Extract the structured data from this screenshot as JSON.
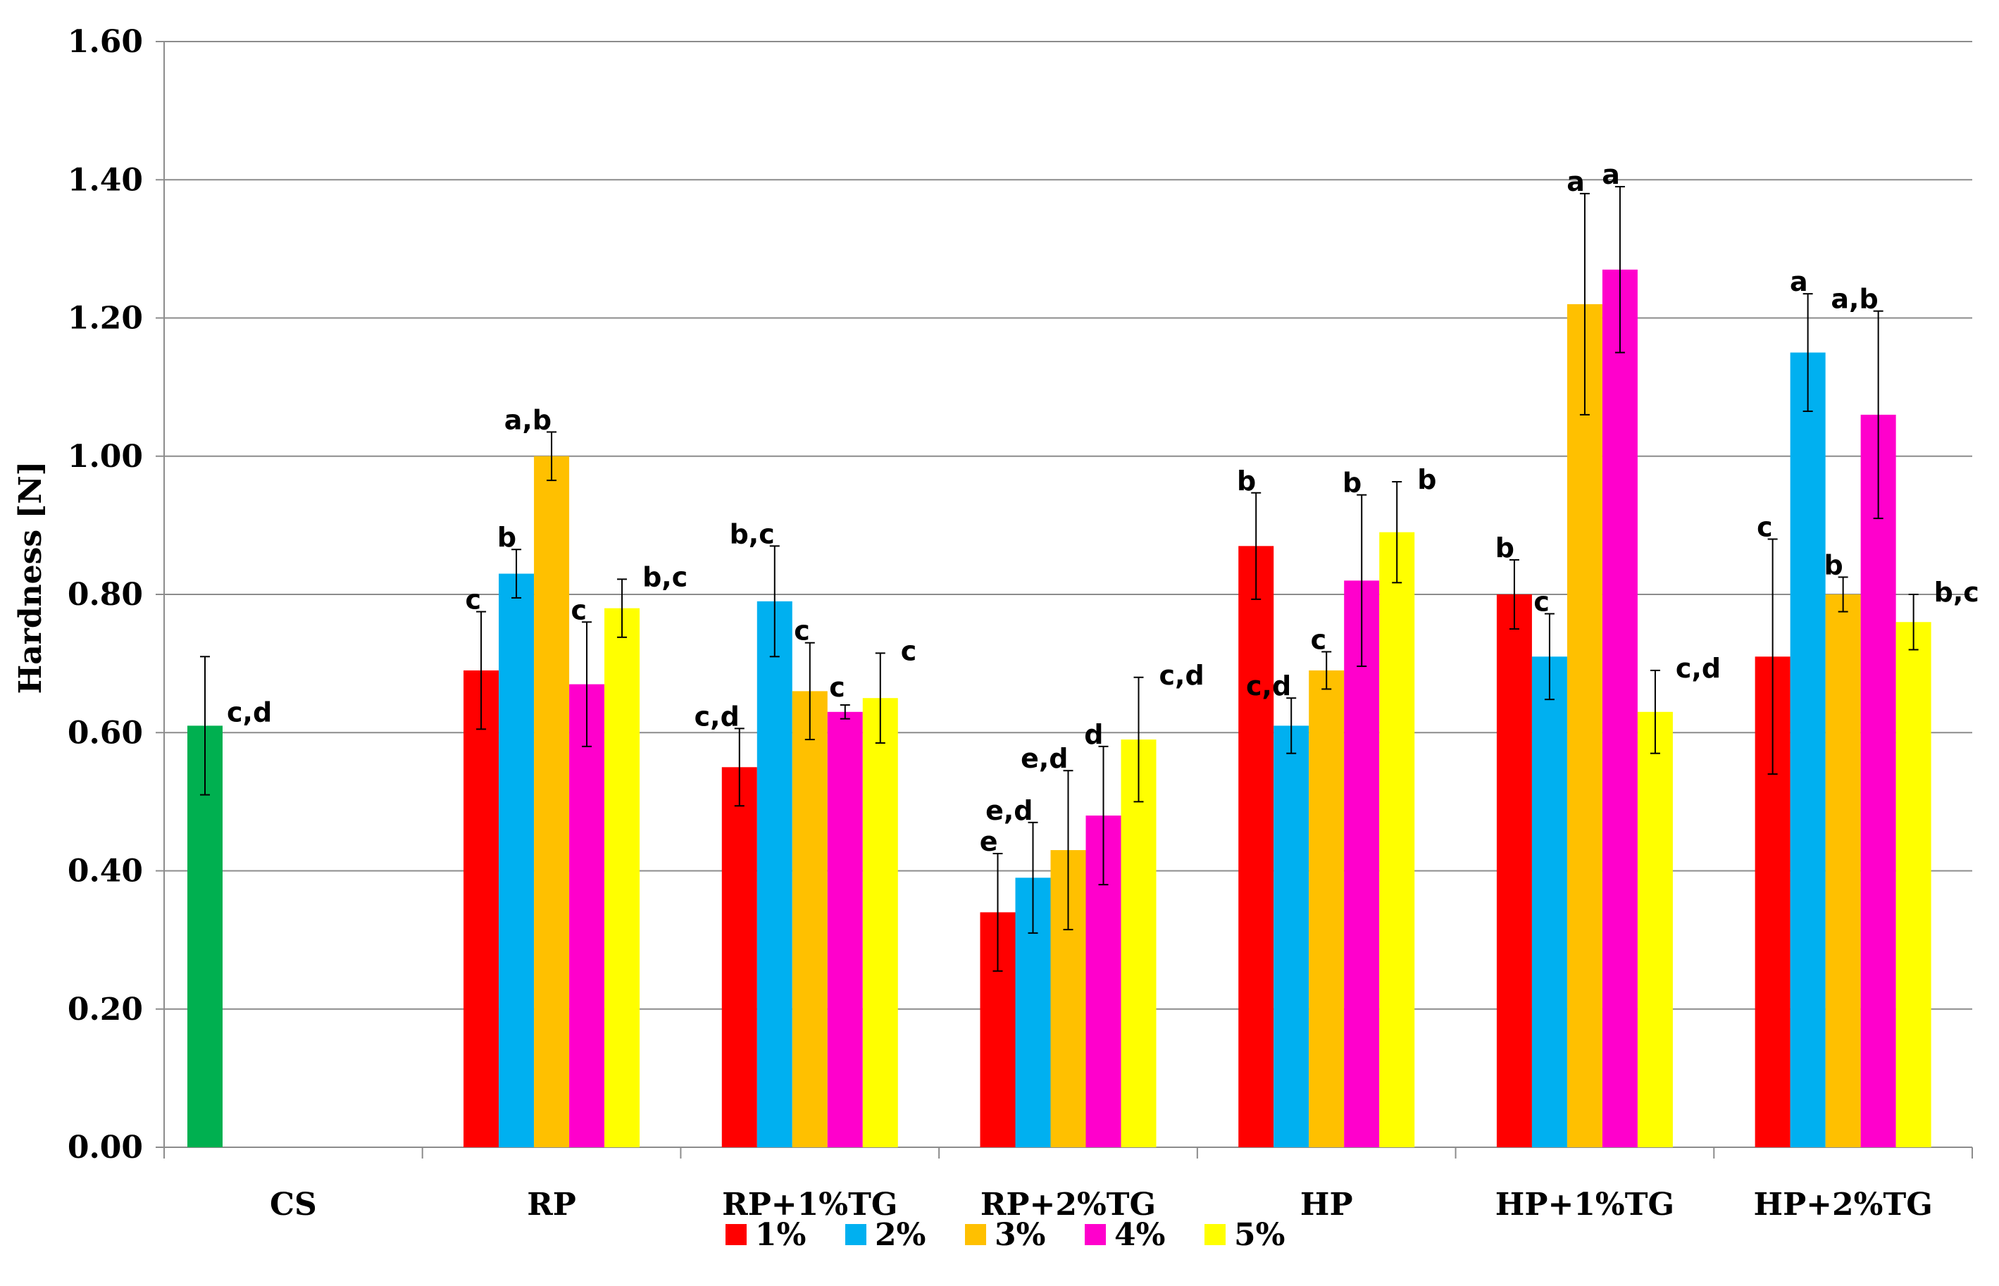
{
  "chart_data": {
    "type": "bar",
    "title": "",
    "xlabel": "",
    "ylabel": "Hardness [N]",
    "ylim": [
      0,
      1.6
    ],
    "yticks": [
      "0.00",
      "0.20",
      "0.40",
      "0.60",
      "0.80",
      "1.00",
      "1.20",
      "1.40",
      "1.60"
    ],
    "grid": true,
    "legend_position": "bottom-center",
    "categories": [
      "CS",
      "RP",
      "RP+1%TG",
      "RP+2%TG",
      "HP",
      "HP+1%TG",
      "HP+2%TG"
    ],
    "control": {
      "category": "CS",
      "value": 0.61,
      "error": 0.1,
      "label": "c,d",
      "color": "#00b050"
    },
    "series": [
      {
        "name": "1%",
        "color": "#ff0000",
        "values": [
          null,
          0.69,
          0.55,
          0.34,
          0.87,
          0.8,
          0.71
        ],
        "errors": [
          null,
          0.085,
          0.056,
          0.085,
          0.077,
          0.05,
          0.17
        ],
        "labels": [
          "",
          "c",
          "c,d",
          "e",
          "b",
          "b",
          "c"
        ]
      },
      {
        "name": "2%",
        "color": "#00b0f0",
        "values": [
          null,
          0.83,
          0.79,
          0.39,
          0.61,
          0.71,
          1.15
        ],
        "errors": [
          null,
          0.035,
          0.08,
          0.08,
          0.04,
          0.062,
          0.085
        ],
        "labels": [
          "",
          "b",
          "b,c",
          "e,d",
          "c,d",
          "c",
          "a"
        ]
      },
      {
        "name": "3%",
        "color": "#ffc000",
        "values": [
          null,
          1.0,
          0.66,
          0.43,
          0.69,
          1.22,
          0.8
        ],
        "errors": [
          null,
          0.035,
          0.07,
          0.115,
          0.027,
          0.16,
          0.025
        ],
        "labels": [
          "",
          "a,b",
          "c",
          "e,d",
          "c",
          "a",
          "b"
        ]
      },
      {
        "name": "4%",
        "color": "#ff00cc",
        "values": [
          null,
          0.67,
          0.63,
          0.48,
          0.82,
          1.27,
          1.06
        ],
        "errors": [
          null,
          0.09,
          0.01,
          0.1,
          0.124,
          0.12,
          0.15
        ],
        "labels": [
          "",
          "c",
          "c",
          "d",
          "b",
          "a",
          "a,b"
        ]
      },
      {
        "name": "5%",
        "color": "#ffff00",
        "values": [
          null,
          0.78,
          0.65,
          0.59,
          0.89,
          0.63,
          0.76
        ],
        "errors": [
          null,
          0.042,
          0.065,
          0.09,
          0.073,
          0.06,
          0.04
        ],
        "labels": [
          "",
          "b,c",
          "c",
          "c,d",
          "b",
          "c,d",
          "b,c"
        ]
      }
    ]
  }
}
